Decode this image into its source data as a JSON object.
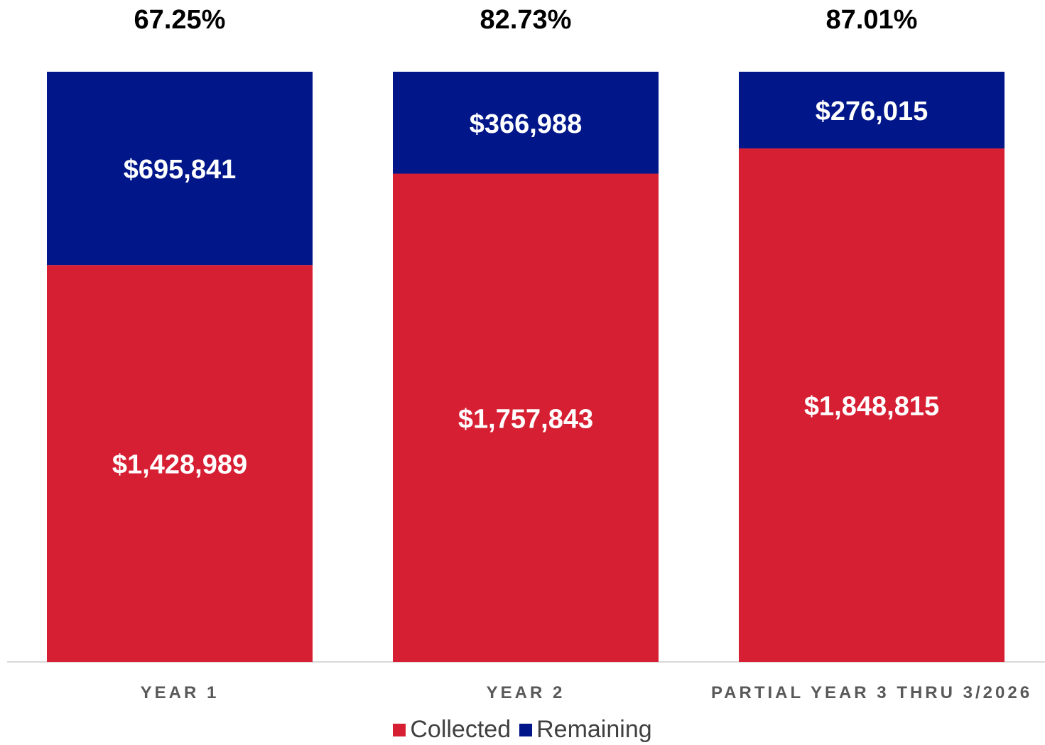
{
  "chart_data": {
    "type": "bar",
    "stacked": true,
    "categories": [
      "YEAR 1",
      "YEAR 2",
      "PARTIAL YEAR 3 THRU 3/2026"
    ],
    "series": [
      {
        "name": "Collected",
        "color": "#d71f33",
        "values": [
          1428989,
          1757843,
          1848815
        ],
        "labels": [
          "$1,428,989",
          "$1,757,843",
          "$1,848,815"
        ]
      },
      {
        "name": "Remaining",
        "color": "#001689",
        "values": [
          695841,
          366988,
          276015
        ],
        "labels": [
          "$695,841",
          "$366,988",
          "$276,015"
        ]
      }
    ],
    "percent_labels": [
      "67.25%",
      "82.73%",
      "87.01%"
    ],
    "legend_position": "bottom",
    "grid": false
  }
}
